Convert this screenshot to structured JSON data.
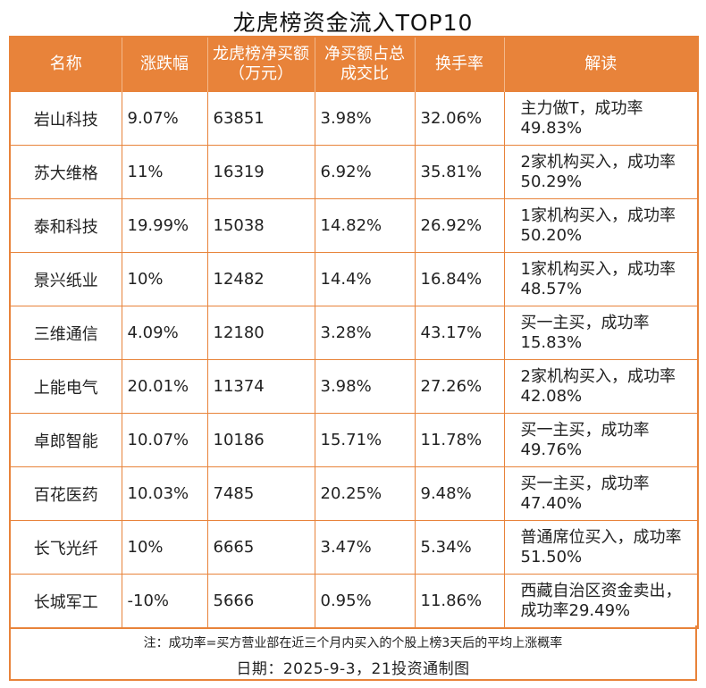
{
  "title": "龙虎榜资金流入TOP10",
  "headers": [
    "名称",
    "涨跌幅",
    "龙虎榜净买额（万元）",
    "净买额占总成交比",
    "换手率",
    "解读"
  ],
  "rows": [
    {
      "name": "岩山科技",
      "change": "9.07%",
      "net_buy": "63851",
      "ratio": "3.98%",
      "turnover": "32.06%",
      "read": "主力做T，成功率49.83%"
    },
    {
      "name": "苏大维格",
      "change": "11%",
      "net_buy": "16319",
      "ratio": "6.92%",
      "turnover": "35.81%",
      "read": "2家机构买入，成功率50.29%"
    },
    {
      "name": "泰和科技",
      "change": "19.99%",
      "net_buy": "15038",
      "ratio": "14.82%",
      "turnover": "26.92%",
      "read": "1家机构买入，成功率50.20%"
    },
    {
      "name": "景兴纸业",
      "change": "10%",
      "net_buy": "12482",
      "ratio": "14.4%",
      "turnover": "16.84%",
      "read": "1家机构买入，成功率48.57%"
    },
    {
      "name": "三维通信",
      "change": "4.09%",
      "net_buy": "12180",
      "ratio": "3.28%",
      "turnover": "43.17%",
      "read": "买一主买，成功率15.83%"
    },
    {
      "name": "上能电气",
      "change": "20.01%",
      "net_buy": "11374",
      "ratio": "3.98%",
      "turnover": "27.26%",
      "read": "2家机构买入，成功率42.08%"
    },
    {
      "name": "卓郎智能",
      "change": "10.07%",
      "net_buy": "10186",
      "ratio": "15.71%",
      "turnover": "11.78%",
      "read": "买一主买，成功率49.76%"
    },
    {
      "name": "百花医药",
      "change": "10.03%",
      "net_buy": "7485",
      "ratio": "20.25%",
      "turnover": "9.48%",
      "read": "买一主买，成功率47.40%"
    },
    {
      "name": "长飞光纤",
      "change": "10%",
      "net_buy": "6665",
      "ratio": "3.47%",
      "turnover": "5.34%",
      "read": "普通席位买入，成功率51.50%"
    },
    {
      "name": "长城军工",
      "change": "-10%",
      "net_buy": "5666",
      "ratio": "0.95%",
      "turnover": "11.86%",
      "read": "西藏自治区资金卖出，成功率29.49%"
    }
  ],
  "note": "注：成功率=买方营业部在近三个月内买入的个股上榜3天后的平均上涨概率",
  "date_line": "日期：2025-9-3，21投资通制图",
  "colors": {
    "accent": "#E8833A"
  }
}
